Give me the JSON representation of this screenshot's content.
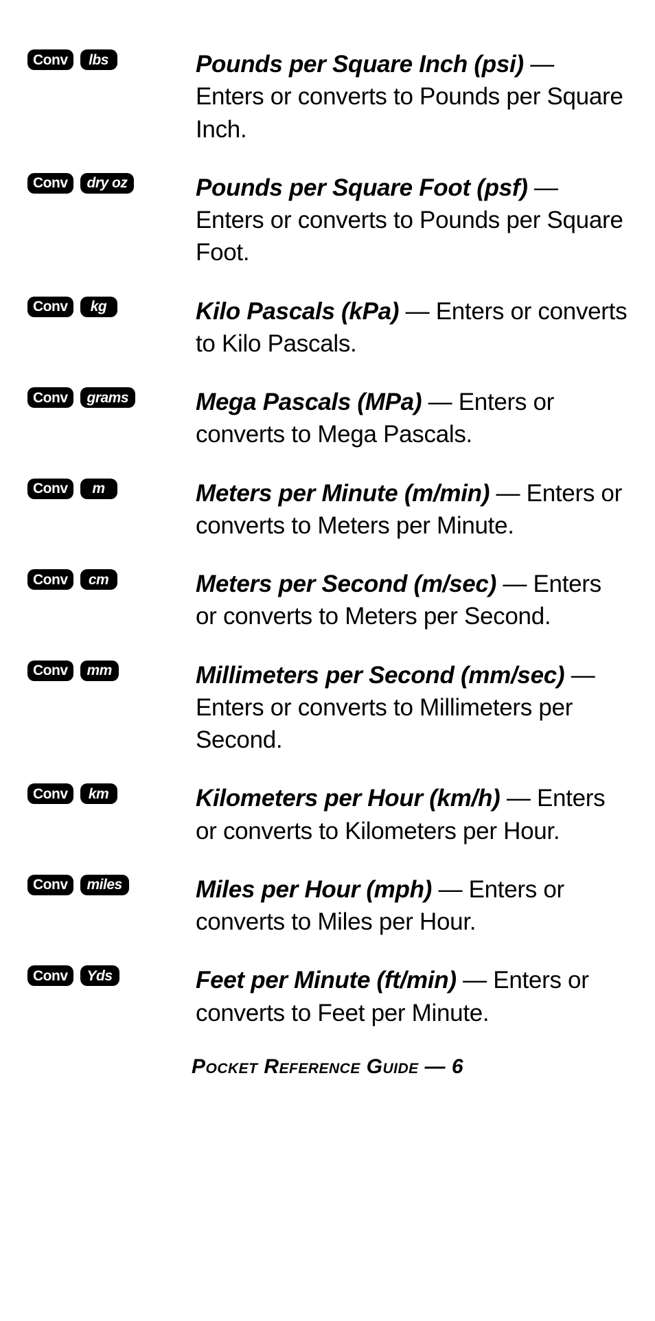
{
  "entries": [
    {
      "keys": [
        "Conv",
        "lbs"
      ],
      "term": "Pounds per Square Inch (psi)",
      "desc": " — Enters or converts to Pounds per Square Inch."
    },
    {
      "keys": [
        "Conv",
        "dry oz"
      ],
      "term": "Pounds per Square Foot (psf)",
      "desc": " — Enters or converts to Pounds per Square Foot."
    },
    {
      "keys": [
        "Conv",
        "kg"
      ],
      "term": "Kilo Pascals (kPa)",
      "desc": " — Enters or converts to Kilo Pascals."
    },
    {
      "keys": [
        "Conv",
        "grams"
      ],
      "term": "Mega Pascals (MPa)",
      "desc": " — Enters or converts to Mega Pascals."
    },
    {
      "keys": [
        "Conv",
        "m"
      ],
      "term": "Meters per Minute (m/min)",
      "desc": " — Enters or con­verts to Meters per Minute."
    },
    {
      "keys": [
        "Conv",
        "cm"
      ],
      "term": "Meters per Second (m/sec)",
      "desc": " — Enters or con­verts to Meters per Second."
    },
    {
      "keys": [
        "Conv",
        "mm"
      ],
      "term": "Millimeters per Second (mm/sec)",
      "desc": " — Enters or con­verts to Millimeters per Second."
    },
    {
      "keys": [
        "Conv",
        "km"
      ],
      "term": "Kilometers per Hour (km/h)",
      "desc": " — Enters or converts to Kilometers per Hour."
    },
    {
      "keys": [
        "Conv",
        "miles"
      ],
      "term": "Miles per Hour (mph)",
      "desc": " — Enters or converts to Miles per Hour."
    },
    {
      "keys": [
        "Conv",
        "Yds"
      ],
      "term": "Feet per Minute (ft/min)",
      "desc": " — Enters or converts to Feet per Minute."
    }
  ],
  "footer": "Pocket Reference Guide — 6",
  "colors": {
    "key_bg": "#000000",
    "key_fg": "#ffffff",
    "text": "#000000",
    "bg": "#ffffff"
  },
  "typography": {
    "body_fontsize": 35,
    "key_fontsize": 21,
    "footer_fontsize": 30
  }
}
